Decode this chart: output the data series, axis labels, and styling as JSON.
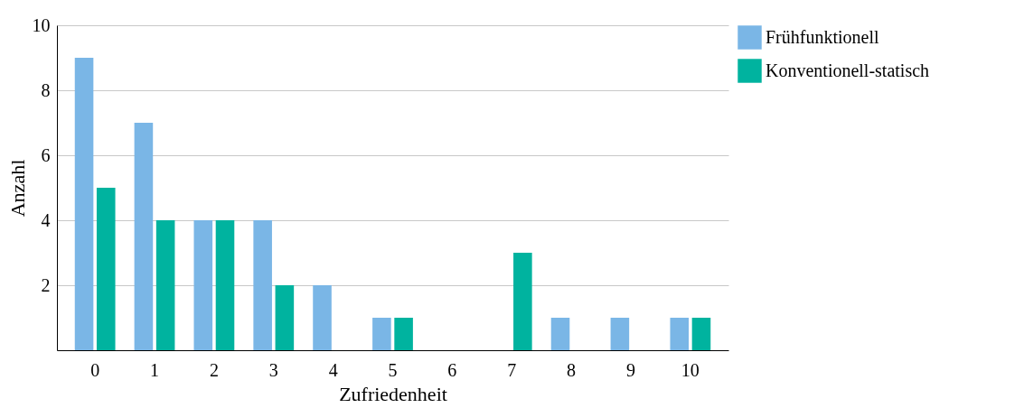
{
  "chart_data": {
    "type": "bar",
    "xlabel": "Zufriedenheit",
    "ylabel": "Anzahl",
    "categories": [
      "0",
      "1",
      "2",
      "3",
      "4",
      "5",
      "6",
      "7",
      "8",
      "9",
      "10"
    ],
    "series": [
      {
        "name": "Frühfunktionell",
        "color": "#7ab6e6",
        "values": [
          9,
          7,
          4,
          4,
          2,
          1,
          0,
          0,
          1,
          1,
          1
        ]
      },
      {
        "name": "Konventionell-statisch",
        "color": "#00b39f",
        "values": [
          5,
          4,
          4,
          2,
          0,
          1,
          0,
          3,
          0,
          0,
          1
        ]
      }
    ],
    "ylim": [
      0,
      10
    ],
    "yticks": [
      2,
      4,
      6,
      8,
      10
    ],
    "grid": "y",
    "legend": "top right"
  }
}
